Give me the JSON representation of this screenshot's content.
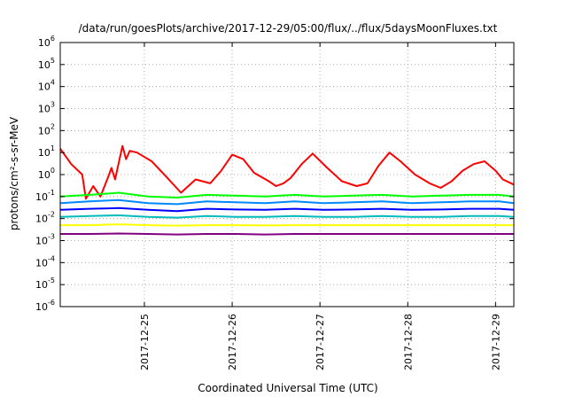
{
  "chart_data": {
    "type": "line",
    "title": "/data/run/goesPlots/archive/2017-12-29/05:00/flux/../flux/5daysMoonFluxes.txt",
    "xlabel": "Coordinated Universal Time (UTC)",
    "ylabel": "protons/cm²-s-sr-MeV",
    "yscale": "log",
    "ylim": [
      1e-06,
      1000000.0
    ],
    "y_ticks": [
      {
        "base": "10",
        "exp": "6",
        "value": 1000000.0
      },
      {
        "base": "10",
        "exp": "5",
        "value": 100000.0
      },
      {
        "base": "10",
        "exp": "4",
        "value": 10000.0
      },
      {
        "base": "10",
        "exp": "3",
        "value": 1000.0
      },
      {
        "base": "10",
        "exp": "2",
        "value": 100.0
      },
      {
        "base": "10",
        "exp": "1",
        "value": 10.0
      },
      {
        "base": "10",
        "exp": "0",
        "value": 1
      },
      {
        "base": "10",
        "exp": "-1",
        "value": 0.1
      },
      {
        "base": "10",
        "exp": "-2",
        "value": 0.01
      },
      {
        "base": "10",
        "exp": "-3",
        "value": 0.001
      },
      {
        "base": "10",
        "exp": "-4",
        "value": 0.0001
      },
      {
        "base": "10",
        "exp": "-5",
        "value": 1e-05
      },
      {
        "base": "10",
        "exp": "-6",
        "value": 1e-06
      }
    ],
    "xlim": [
      "2017-12-24T01:00",
      "2017-12-29T05:00"
    ],
    "x_ticks": [
      "2017-12-25",
      "2017-12-26",
      "2017-12-27",
      "2017-12-28",
      "2017-12-29"
    ],
    "grid": true,
    "series": [
      {
        "color": "#ff0000",
        "x": [
          "2017-12-24T01:00",
          "2017-12-24T04:00",
          "2017-12-24T07:00",
          "2017-12-24T08:00",
          "2017-12-24T10:00",
          "2017-12-24T12:00",
          "2017-12-24T14:00",
          "2017-12-24T15:00",
          "2017-12-24T16:00",
          "2017-12-24T18:00",
          "2017-12-24T19:00",
          "2017-12-24T20:00",
          "2017-12-24T22:00",
          "2017-12-25T02:00",
          "2017-12-25T06:00",
          "2017-12-25T10:00",
          "2017-12-25T14:00",
          "2017-12-25T18:00",
          "2017-12-25T21:00",
          "2017-12-26T00:00",
          "2017-12-26T03:00",
          "2017-12-26T06:00",
          "2017-12-26T10:00",
          "2017-12-26T12:00",
          "2017-12-26T14:00",
          "2017-12-26T16:00",
          "2017-12-26T19:00",
          "2017-12-26T22:00",
          "2017-12-27T02:00",
          "2017-12-27T06:00",
          "2017-12-27T10:00",
          "2017-12-27T13:00",
          "2017-12-27T16:00",
          "2017-12-27T19:00",
          "2017-12-27T22:00",
          "2017-12-28T02:00",
          "2017-12-28T06:00",
          "2017-12-28T09:00",
          "2017-12-28T12:00",
          "2017-12-28T15:00",
          "2017-12-28T18:00",
          "2017-12-28T21:00",
          "2017-12-29T00:00",
          "2017-12-29T02:00",
          "2017-12-29T05:00"
        ],
        "values": [
          15,
          3,
          1,
          0.08,
          0.3,
          0.1,
          0.7,
          2,
          0.6,
          20,
          5,
          12,
          10,
          4,
          0.8,
          0.15,
          0.6,
          0.4,
          1.5,
          8,
          5,
          1.2,
          0.5,
          0.3,
          0.4,
          0.7,
          3,
          9,
          2,
          0.5,
          0.3,
          0.4,
          2.5,
          10,
          4,
          1,
          0.4,
          0.25,
          0.5,
          1.5,
          3,
          4,
          1.5,
          0.6,
          0.35
        ]
      },
      {
        "color": "#00ff00",
        "x": [
          "2017-12-24T01:00",
          "2017-12-24T09:00",
          "2017-12-24T17:00",
          "2017-12-25T01:00",
          "2017-12-25T09:00",
          "2017-12-25T17:00",
          "2017-12-26T01:00",
          "2017-12-26T09:00",
          "2017-12-26T17:00",
          "2017-12-27T01:00",
          "2017-12-27T09:00",
          "2017-12-27T17:00",
          "2017-12-28T01:00",
          "2017-12-28T09:00",
          "2017-12-28T17:00",
          "2017-12-29T01:00",
          "2017-12-29T05:00"
        ],
        "values": [
          0.1,
          0.12,
          0.15,
          0.1,
          0.09,
          0.12,
          0.11,
          0.1,
          0.12,
          0.1,
          0.11,
          0.12,
          0.1,
          0.11,
          0.12,
          0.12,
          0.1
        ]
      },
      {
        "color": "#0088ff",
        "x": [
          "2017-12-24T01:00",
          "2017-12-24T09:00",
          "2017-12-24T17:00",
          "2017-12-25T01:00",
          "2017-12-25T09:00",
          "2017-12-25T17:00",
          "2017-12-26T01:00",
          "2017-12-26T09:00",
          "2017-12-26T17:00",
          "2017-12-27T01:00",
          "2017-12-27T09:00",
          "2017-12-27T17:00",
          "2017-12-28T01:00",
          "2017-12-28T09:00",
          "2017-12-28T17:00",
          "2017-12-29T01:00",
          "2017-12-29T05:00"
        ],
        "values": [
          0.05,
          0.06,
          0.07,
          0.05,
          0.045,
          0.06,
          0.055,
          0.05,
          0.06,
          0.05,
          0.055,
          0.06,
          0.05,
          0.055,
          0.06,
          0.06,
          0.05
        ]
      },
      {
        "color": "#0000ff",
        "x": [
          "2017-12-24T01:00",
          "2017-12-24T09:00",
          "2017-12-24T17:00",
          "2017-12-25T01:00",
          "2017-12-25T09:00",
          "2017-12-25T17:00",
          "2017-12-26T01:00",
          "2017-12-26T09:00",
          "2017-12-26T17:00",
          "2017-12-27T01:00",
          "2017-12-27T09:00",
          "2017-12-27T17:00",
          "2017-12-28T01:00",
          "2017-12-28T09:00",
          "2017-12-28T17:00",
          "2017-12-29T01:00",
          "2017-12-29T05:00"
        ],
        "values": [
          0.025,
          0.028,
          0.03,
          0.025,
          0.022,
          0.028,
          0.026,
          0.025,
          0.028,
          0.025,
          0.026,
          0.028,
          0.025,
          0.026,
          0.028,
          0.028,
          0.025
        ]
      },
      {
        "color": "#00bbbb",
        "x": [
          "2017-12-24T01:00",
          "2017-12-24T09:00",
          "2017-12-24T17:00",
          "2017-12-25T01:00",
          "2017-12-25T09:00",
          "2017-12-25T17:00",
          "2017-12-26T01:00",
          "2017-12-26T09:00",
          "2017-12-26T17:00",
          "2017-12-27T01:00",
          "2017-12-27T09:00",
          "2017-12-27T17:00",
          "2017-12-28T01:00",
          "2017-12-28T09:00",
          "2017-12-28T17:00",
          "2017-12-29T01:00",
          "2017-12-29T05:00"
        ],
        "values": [
          0.012,
          0.013,
          0.014,
          0.012,
          0.011,
          0.013,
          0.012,
          0.012,
          0.013,
          0.012,
          0.012,
          0.013,
          0.012,
          0.012,
          0.013,
          0.013,
          0.012
        ]
      },
      {
        "color": "#ffff00",
        "x": [
          "2017-12-24T01:00",
          "2017-12-24T09:00",
          "2017-12-24T17:00",
          "2017-12-25T01:00",
          "2017-12-25T09:00",
          "2017-12-25T17:00",
          "2017-12-26T01:00",
          "2017-12-26T09:00",
          "2017-12-26T17:00",
          "2017-12-27T01:00",
          "2017-12-27T09:00",
          "2017-12-27T17:00",
          "2017-12-28T01:00",
          "2017-12-28T09:00",
          "2017-12-28T17:00",
          "2017-12-29T01:00",
          "2017-12-29T05:00"
        ],
        "values": [
          0.005,
          0.005,
          0.0055,
          0.005,
          0.0048,
          0.005,
          0.005,
          0.0049,
          0.005,
          0.005,
          0.005,
          0.005,
          0.005,
          0.005,
          0.005,
          0.005,
          0.005
        ]
      },
      {
        "color": "#800080",
        "x": [
          "2017-12-24T01:00",
          "2017-12-24T09:00",
          "2017-12-24T17:00",
          "2017-12-25T01:00",
          "2017-12-25T09:00",
          "2017-12-25T17:00",
          "2017-12-26T01:00",
          "2017-12-26T09:00",
          "2017-12-26T17:00",
          "2017-12-27T01:00",
          "2017-12-27T09:00",
          "2017-12-27T17:00",
          "2017-12-28T01:00",
          "2017-12-28T09:00",
          "2017-12-28T17:00",
          "2017-12-29T01:00",
          "2017-12-29T05:00"
        ],
        "values": [
          0.002,
          0.002,
          0.0021,
          0.002,
          0.0019,
          0.002,
          0.002,
          0.0019,
          0.002,
          0.002,
          0.002,
          0.002,
          0.002,
          0.002,
          0.002,
          0.002,
          0.002
        ]
      }
    ]
  }
}
